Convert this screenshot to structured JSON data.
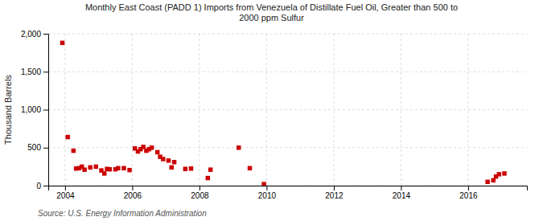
{
  "chart_data": {
    "type": "scatter",
    "title": "Monthly East Coast (PADD 1) Imports from Venezuela of Distillate Fuel Oil, Greater than 500 to\n2000 ppm Sulfur",
    "ylabel": "Thousand Barrels",
    "source": "Source: U.S. Energy Information Administration",
    "color": "#cc0000",
    "marker": "square",
    "xlim": [
      2003.5,
      2017.75
    ],
    "xticks": [
      2004,
      2006,
      2008,
      2010,
      2012,
      2014,
      2016
    ],
    "ylim": [
      0,
      2000
    ],
    "yticks": [
      0,
      500,
      {
        "value": 1000,
        "label": "1,000"
      },
      {
        "value": 1500,
        "label": "1,500"
      },
      {
        "value": 2000,
        "label": "2,000"
      }
    ],
    "grid": true,
    "x": [
      2003.92,
      2004.08,
      2004.25,
      2004.33,
      2004.42,
      2004.5,
      2004.58,
      2004.75,
      2004.92,
      2005.08,
      2005.17,
      2005.25,
      2005.33,
      2005.5,
      2005.58,
      2005.75,
      2005.92,
      2006.08,
      2006.17,
      2006.25,
      2006.33,
      2006.42,
      2006.5,
      2006.58,
      2006.75,
      2006.83,
      2006.92,
      2007.08,
      2007.17,
      2007.25,
      2007.58,
      2007.75,
      2008.25,
      2008.33,
      2009.17,
      2009.5,
      2009.92,
      2016.58,
      2016.75,
      2016.83,
      2016.92,
      2017.08
    ],
    "values": [
      1880,
      640,
      460,
      225,
      230,
      250,
      210,
      240,
      250,
      200,
      160,
      220,
      215,
      215,
      230,
      230,
      205,
      490,
      450,
      480,
      510,
      460,
      480,
      500,
      440,
      380,
      350,
      330,
      240,
      310,
      220,
      225,
      100,
      210,
      500,
      230,
      20,
      50,
      70,
      120,
      150,
      160
    ]
  }
}
